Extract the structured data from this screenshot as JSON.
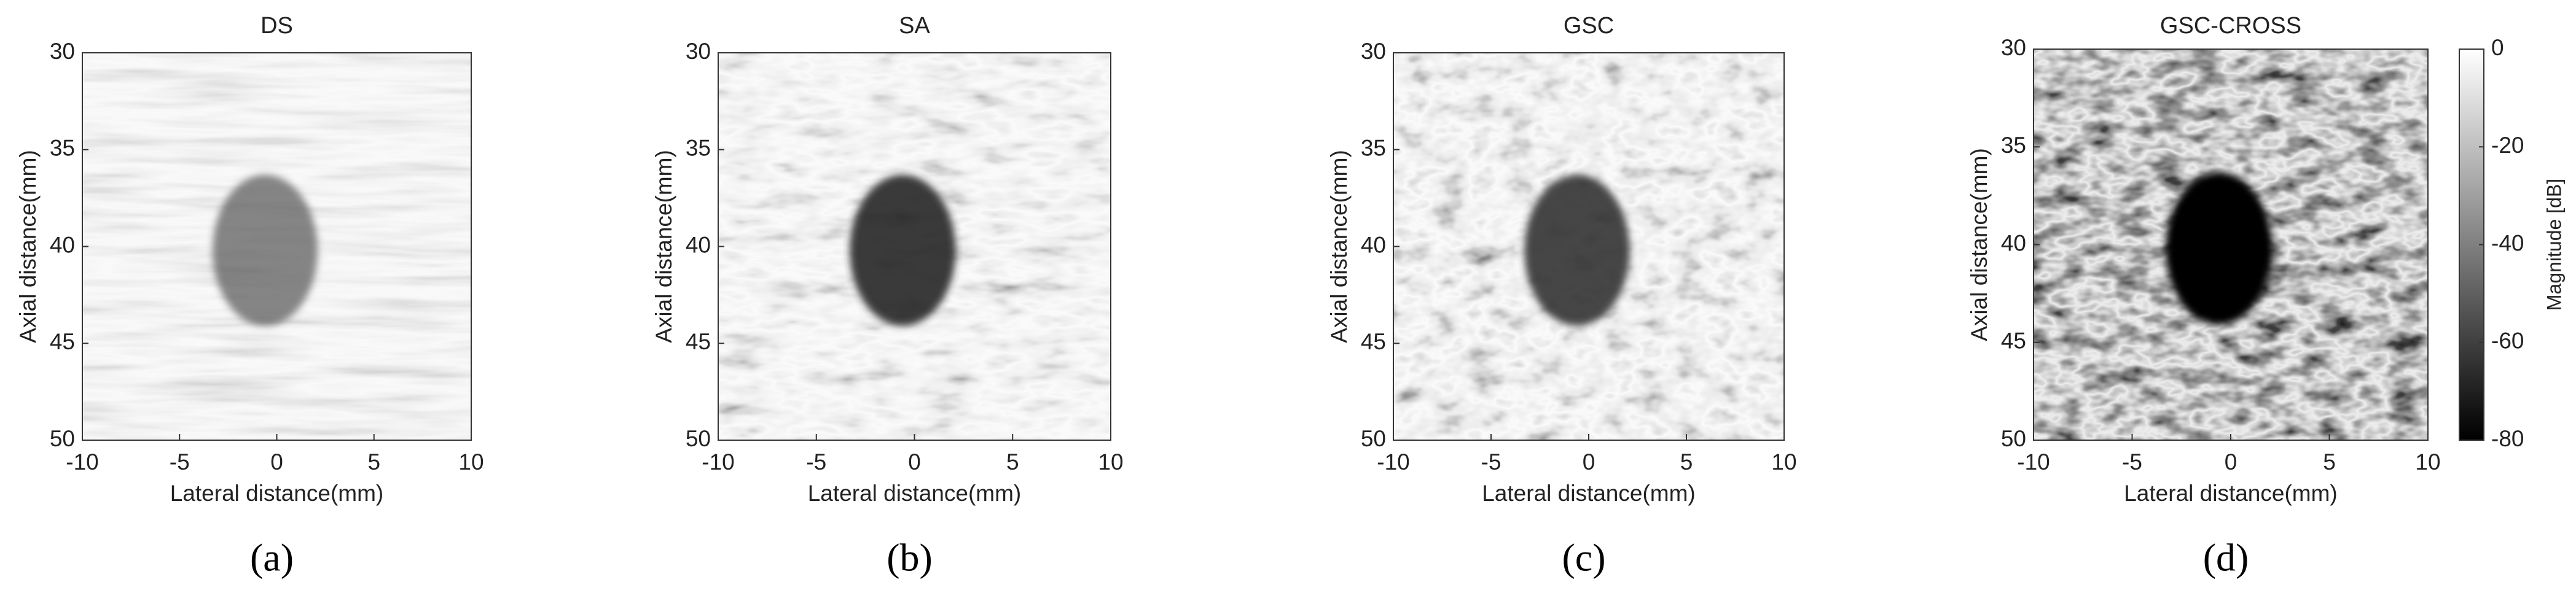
{
  "chart_data": [
    {
      "type": "image",
      "title": "DS",
      "xlabel": "Lateral distance(mm)",
      "ylabel": "Axial distance(mm)",
      "xlim": [
        -10,
        10
      ],
      "xticks": [
        -10,
        -5,
        0,
        5,
        10
      ],
      "ylim": [
        30,
        50
      ],
      "yticks": [
        30,
        35,
        40,
        45,
        50
      ],
      "y_reversed": true,
      "panel_label": "(a)"
    },
    {
      "type": "image",
      "title": "SA",
      "xlabel": "Lateral distance(mm)",
      "ylabel": "Axial distance(mm)",
      "xlim": [
        -10,
        10
      ],
      "xticks": [
        -10,
        -5,
        0,
        5,
        10
      ],
      "ylim": [
        30,
        50
      ],
      "yticks": [
        30,
        35,
        40,
        45,
        50
      ],
      "y_reversed": true,
      "panel_label": "(b)"
    },
    {
      "type": "image",
      "title": "GSC",
      "xlabel": "Lateral distance(mm)",
      "ylabel": "Axial distance(mm)",
      "xlim": [
        -10,
        10
      ],
      "xticks": [
        -10,
        -5,
        0,
        5,
        10
      ],
      "ylim": [
        30,
        50
      ],
      "yticks": [
        30,
        35,
        40,
        45,
        50
      ],
      "y_reversed": true,
      "panel_label": "(c)"
    },
    {
      "type": "image",
      "title": "GSC-CROSS",
      "xlabel": "Lateral distance(mm)",
      "ylabel": "Axial distance(mm)",
      "xlim": [
        -10,
        10
      ],
      "xticks": [
        -10,
        -5,
        0,
        5,
        10
      ],
      "ylim": [
        30,
        50
      ],
      "yticks": [
        30,
        35,
        40,
        45,
        50
      ],
      "y_reversed": true,
      "panel_label": "(d)",
      "colorbar": {
        "label": "Magnitude [dB]",
        "lim": [
          -80,
          0
        ],
        "ticks": [
          0,
          -20,
          -40,
          -60,
          -80
        ],
        "colormap": "gray"
      }
    }
  ]
}
